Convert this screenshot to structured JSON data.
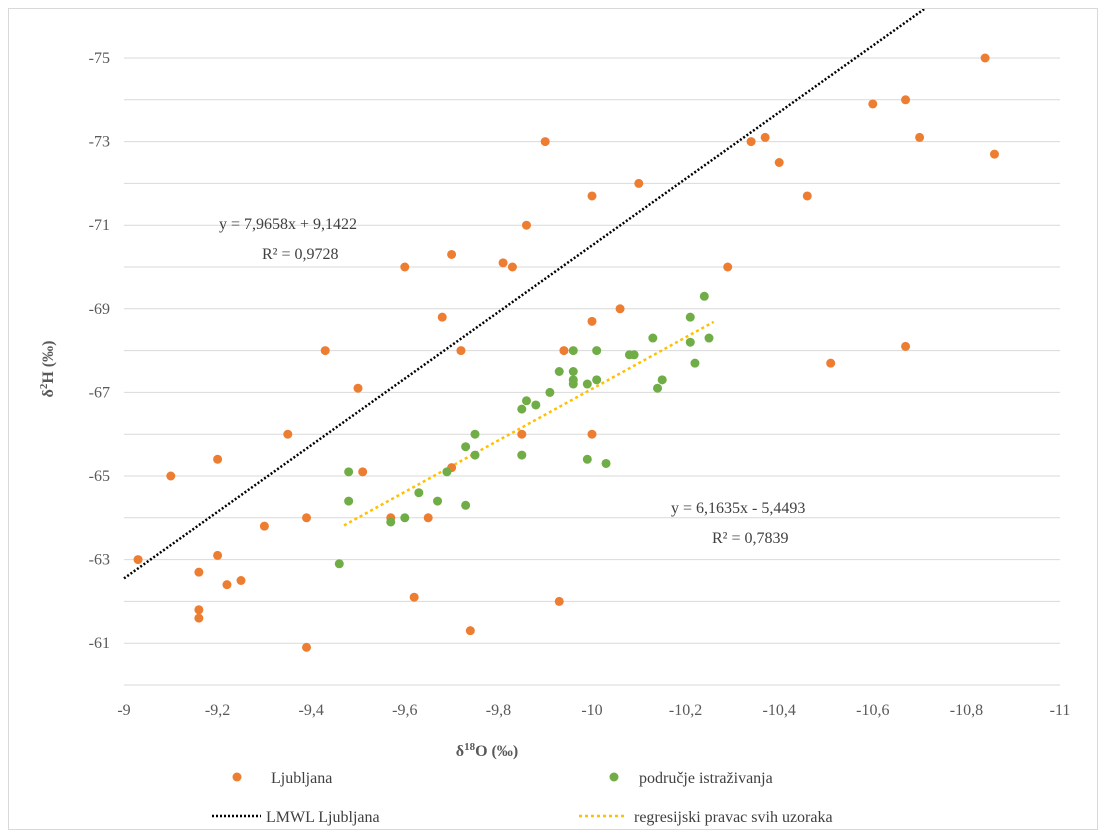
{
  "chart_data": {
    "type": "scatter",
    "xlabel": "δ18O (‰)",
    "ylabel": "δ2H (‰)",
    "xlim": [
      -9,
      -11
    ],
    "ylim": [
      -60,
      -75
    ],
    "x_ticks": [
      "-9",
      "-9,2",
      "-9,4",
      "-9,6",
      "-9,8",
      "-10",
      "-10,2",
      "-10,4",
      "-10,6",
      "-10,8",
      "-11"
    ],
    "y_ticks": [
      "-75",
      "-73",
      "-71",
      "-69",
      "-67",
      "-65",
      "-63",
      "-61"
    ],
    "grid": "horizontal",
    "legend_position": "bottom",
    "series": [
      {
        "name": "Ljubljana",
        "kind": "points",
        "color": "#ed7d31",
        "points": [
          [
            -9.03,
            -63.0
          ],
          [
            -9.1,
            -65.0
          ],
          [
            -9.16,
            -62.7
          ],
          [
            -9.16,
            -61.8
          ],
          [
            -9.16,
            -61.6
          ],
          [
            -9.2,
            -65.4
          ],
          [
            -9.2,
            -63.1
          ],
          [
            -9.22,
            -62.4
          ],
          [
            -9.25,
            -62.5
          ],
          [
            -9.3,
            -63.8
          ],
          [
            -9.35,
            -66.0
          ],
          [
            -9.39,
            -64.0
          ],
          [
            -9.39,
            -60.9
          ],
          [
            -9.43,
            -68.0
          ],
          [
            -9.5,
            -67.1
          ],
          [
            -9.51,
            -65.1
          ],
          [
            -9.57,
            -64.0
          ],
          [
            -9.6,
            -70.0
          ],
          [
            -9.62,
            -62.1
          ],
          [
            -9.65,
            -64.0
          ],
          [
            -9.68,
            -68.8
          ],
          [
            -9.7,
            -70.3
          ],
          [
            -9.7,
            -65.2
          ],
          [
            -9.72,
            -68.0
          ],
          [
            -9.74,
            -61.3
          ],
          [
            -9.81,
            -70.1
          ],
          [
            -9.83,
            -70.0
          ],
          [
            -9.85,
            -66.0
          ],
          [
            -9.86,
            -71.0
          ],
          [
            -9.9,
            -73.0
          ],
          [
            -9.93,
            -62.0
          ],
          [
            -9.94,
            -68.0
          ],
          [
            -10.0,
            -71.7
          ],
          [
            -10.0,
            -68.7
          ],
          [
            -10.0,
            -66.0
          ],
          [
            -10.06,
            -69.0
          ],
          [
            -10.1,
            -72.0
          ],
          [
            -10.29,
            -70.0
          ],
          [
            -10.34,
            -73.0
          ],
          [
            -10.37,
            -73.1
          ],
          [
            -10.4,
            -72.5
          ],
          [
            -10.46,
            -71.7
          ],
          [
            -10.51,
            -67.7
          ],
          [
            -10.6,
            -73.9
          ],
          [
            -10.67,
            -74.0
          ],
          [
            -10.67,
            -68.1
          ],
          [
            -10.7,
            -73.1
          ],
          [
            -10.84,
            -75.0
          ],
          [
            -10.86,
            -72.7
          ]
        ]
      },
      {
        "name": "područje istraživanja",
        "kind": "points",
        "color": "#70ad47",
        "points": [
          [
            -9.46,
            -62.9
          ],
          [
            -9.48,
            -65.1
          ],
          [
            -9.48,
            -64.4
          ],
          [
            -9.57,
            -63.9
          ],
          [
            -9.6,
            -64.0
          ],
          [
            -9.63,
            -64.6
          ],
          [
            -9.67,
            -64.4
          ],
          [
            -9.69,
            -65.1
          ],
          [
            -9.73,
            -65.7
          ],
          [
            -9.73,
            -64.3
          ],
          [
            -9.75,
            -66.0
          ],
          [
            -9.75,
            -65.5
          ],
          [
            -9.85,
            -66.6
          ],
          [
            -9.85,
            -65.5
          ],
          [
            -9.86,
            -66.8
          ],
          [
            -9.88,
            -66.7
          ],
          [
            -9.91,
            -67.0
          ],
          [
            -9.93,
            -67.5
          ],
          [
            -9.96,
            -68.0
          ],
          [
            -9.96,
            -67.5
          ],
          [
            -9.96,
            -67.3
          ],
          [
            -9.96,
            -67.2
          ],
          [
            -9.99,
            -67.2
          ],
          [
            -9.99,
            -65.4
          ],
          [
            -10.01,
            -68.0
          ],
          [
            -10.01,
            -67.3
          ],
          [
            -10.03,
            -65.3
          ],
          [
            -10.08,
            -67.9
          ],
          [
            -10.09,
            -67.9
          ],
          [
            -10.13,
            -68.3
          ],
          [
            -10.14,
            -67.1
          ],
          [
            -10.15,
            -67.3
          ],
          [
            -10.21,
            -68.8
          ],
          [
            -10.21,
            -68.2
          ],
          [
            -10.22,
            -67.7
          ],
          [
            -10.24,
            -69.3
          ],
          [
            -10.25,
            -68.3
          ]
        ]
      },
      {
        "name": "LMWL Ljubljana",
        "kind": "line",
        "color": "#000000",
        "dash": "dotted",
        "x_range": [
          -9.0,
          -10.8
        ],
        "equation": "y = 7,9658x + 9,1422",
        "r2": "R² = 0,9728",
        "slope": 7.9658,
        "intercept": 9.1422
      },
      {
        "name": "regresijski pravac svih uzoraka",
        "kind": "line",
        "color": "#ffc000",
        "dash": "dotted",
        "x_range": [
          -9.47,
          -10.26
        ],
        "equation": "y = 6,1635x - 5,4493",
        "r2": "R² = 0,7839",
        "slope": 6.1635,
        "intercept": -5.4493
      }
    ]
  }
}
